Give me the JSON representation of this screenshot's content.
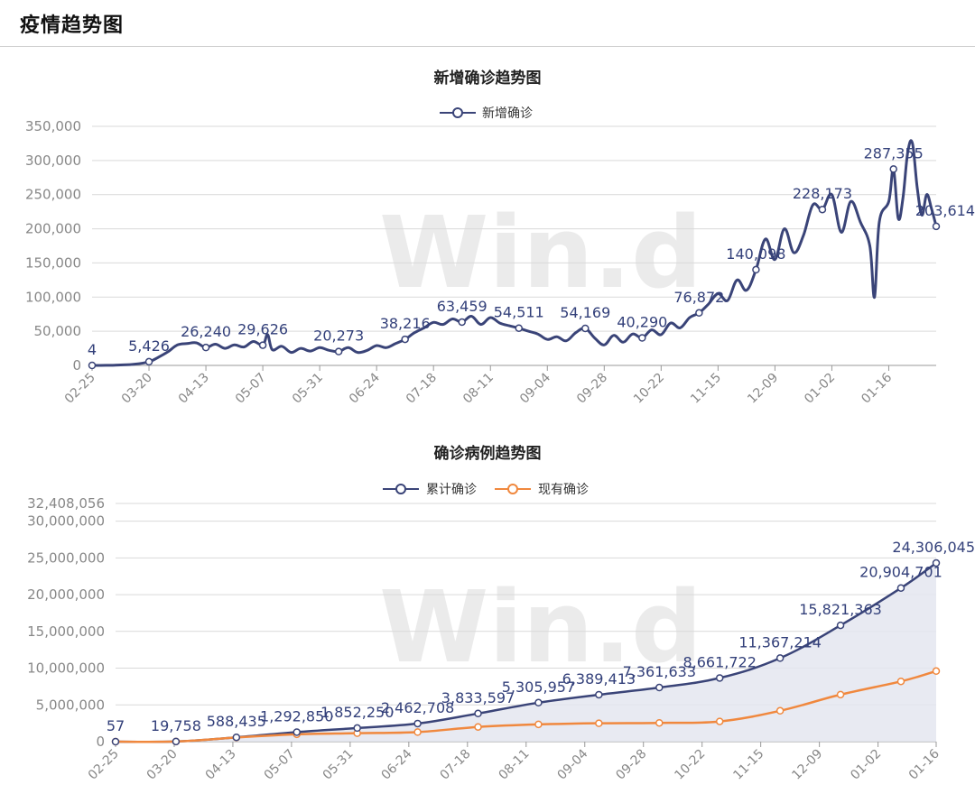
{
  "page": {
    "title": "疫情趋势图"
  },
  "watermark": "Win.d",
  "colors": {
    "navy": "#3a4478",
    "orange": "#f0883e",
    "area_fill": "#e4e6f0",
    "grid": "#d9d9d9",
    "axis_text": "#888888"
  },
  "chart_data": [
    {
      "type": "line",
      "title": "新增确诊趋势图",
      "legend_position": "top-center",
      "grid": true,
      "x_ticks": [
        "02-25",
        "03-20",
        "04-13",
        "05-07",
        "05-31",
        "06-24",
        "07-18",
        "08-11",
        "09-04",
        "09-28",
        "10-22",
        "11-15",
        "12-09",
        "01-02",
        "01-16"
      ],
      "y_ticks": [
        "0",
        "50,000",
        "100,000",
        "150,000",
        "200,000",
        "250,000",
        "300,000",
        "350,000"
      ],
      "ylim": [
        0,
        350000
      ],
      "series": [
        {
          "name": "新增确诊",
          "color": "#3a4478",
          "points": [
            {
              "x": 0,
              "y": 4
            },
            {
              "x": 6,
              "y": 150
            },
            {
              "x": 12,
              "y": 600
            },
            {
              "x": 18,
              "y": 1800
            },
            {
              "x": 24,
              "y": 5426
            },
            {
              "x": 28,
              "y": 12000
            },
            {
              "x": 32,
              "y": 20000
            },
            {
              "x": 36,
              "y": 30000
            },
            {
              "x": 40,
              "y": 32000
            },
            {
              "x": 44,
              "y": 33000
            },
            {
              "x": 48,
              "y": 26240
            },
            {
              "x": 52,
              "y": 31000
            },
            {
              "x": 56,
              "y": 25000
            },
            {
              "x": 60,
              "y": 30000
            },
            {
              "x": 64,
              "y": 27000
            },
            {
              "x": 68,
              "y": 35000
            },
            {
              "x": 72,
              "y": 29626
            },
            {
              "x": 74,
              "y": 45000
            },
            {
              "x": 76,
              "y": 23000
            },
            {
              "x": 80,
              "y": 28000
            },
            {
              "x": 84,
              "y": 19000
            },
            {
              "x": 88,
              "y": 25000
            },
            {
              "x": 92,
              "y": 21000
            },
            {
              "x": 96,
              "y": 26000
            },
            {
              "x": 100,
              "y": 22000
            },
            {
              "x": 104,
              "y": 20273
            },
            {
              "x": 108,
              "y": 26000
            },
            {
              "x": 112,
              "y": 19000
            },
            {
              "x": 116,
              "y": 22000
            },
            {
              "x": 120,
              "y": 29000
            },
            {
              "x": 124,
              "y": 26000
            },
            {
              "x": 128,
              "y": 32000
            },
            {
              "x": 132,
              "y": 38216
            },
            {
              "x": 136,
              "y": 48000
            },
            {
              "x": 140,
              "y": 55000
            },
            {
              "x": 144,
              "y": 63000
            },
            {
              "x": 148,
              "y": 60000
            },
            {
              "x": 152,
              "y": 68000
            },
            {
              "x": 156,
              "y": 63459
            },
            {
              "x": 160,
              "y": 72000
            },
            {
              "x": 164,
              "y": 60000
            },
            {
              "x": 168,
              "y": 70000
            },
            {
              "x": 172,
              "y": 62000
            },
            {
              "x": 176,
              "y": 58000
            },
            {
              "x": 180,
              "y": 54511
            },
            {
              "x": 184,
              "y": 50000
            },
            {
              "x": 188,
              "y": 46000
            },
            {
              "x": 192,
              "y": 38000
            },
            {
              "x": 196,
              "y": 42000
            },
            {
              "x": 200,
              "y": 36000
            },
            {
              "x": 204,
              "y": 48000
            },
            {
              "x": 208,
              "y": 54169
            },
            {
              "x": 212,
              "y": 40000
            },
            {
              "x": 216,
              "y": 30000
            },
            {
              "x": 220,
              "y": 44000
            },
            {
              "x": 224,
              "y": 34000
            },
            {
              "x": 228,
              "y": 46000
            },
            {
              "x": 232,
              "y": 40290
            },
            {
              "x": 236,
              "y": 52000
            },
            {
              "x": 240,
              "y": 45000
            },
            {
              "x": 244,
              "y": 62000
            },
            {
              "x": 248,
              "y": 55000
            },
            {
              "x": 252,
              "y": 70000
            },
            {
              "x": 256,
              "y": 76872
            },
            {
              "x": 260,
              "y": 90000
            },
            {
              "x": 264,
              "y": 105000
            },
            {
              "x": 268,
              "y": 95000
            },
            {
              "x": 272,
              "y": 125000
            },
            {
              "x": 276,
              "y": 110000
            },
            {
              "x": 280,
              "y": 140098
            },
            {
              "x": 284,
              "y": 185000
            },
            {
              "x": 288,
              "y": 155000
            },
            {
              "x": 292,
              "y": 200000
            },
            {
              "x": 296,
              "y": 165000
            },
            {
              "x": 300,
              "y": 190000
            },
            {
              "x": 304,
              "y": 235000
            },
            {
              "x": 308,
              "y": 228173
            },
            {
              "x": 312,
              "y": 250000
            },
            {
              "x": 316,
              "y": 195000
            },
            {
              "x": 320,
              "y": 240000
            },
            {
              "x": 324,
              "y": 210000
            },
            {
              "x": 328,
              "y": 175000
            },
            {
              "x": 330,
              "y": 100000
            },
            {
              "x": 332,
              "y": 210000
            },
            {
              "x": 336,
              "y": 240000
            },
            {
              "x": 338,
              "y": 287355
            },
            {
              "x": 340,
              "y": 215000
            },
            {
              "x": 342,
              "y": 245000
            },
            {
              "x": 344,
              "y": 312000
            },
            {
              "x": 346,
              "y": 325000
            },
            {
              "x": 348,
              "y": 260000
            },
            {
              "x": 350,
              "y": 220000
            },
            {
              "x": 352,
              "y": 250000
            },
            {
              "x": 354,
              "y": 230000
            },
            {
              "x": 356,
              "y": 203614
            }
          ],
          "labeled_points": [
            {
              "x": 0,
              "y": 4,
              "label": "4"
            },
            {
              "x": 24,
              "y": 5426,
              "label": "5,426"
            },
            {
              "x": 48,
              "y": 26240,
              "label": "26,240"
            },
            {
              "x": 72,
              "y": 29626,
              "label": "29,626"
            },
            {
              "x": 104,
              "y": 20273,
              "label": "20,273"
            },
            {
              "x": 132,
              "y": 38216,
              "label": "38,216"
            },
            {
              "x": 156,
              "y": 63459,
              "label": "63,459"
            },
            {
              "x": 180,
              "y": 54511,
              "label": "54,511"
            },
            {
              "x": 208,
              "y": 54169,
              "label": "54,169"
            },
            {
              "x": 232,
              "y": 40290,
              "label": "40,290"
            },
            {
              "x": 256,
              "y": 76872,
              "label": "76,872"
            },
            {
              "x": 280,
              "y": 140098,
              "label": "140,098"
            },
            {
              "x": 308,
              "y": 228173,
              "label": "228,173"
            },
            {
              "x": 338,
              "y": 287355,
              "label": "287,355"
            },
            {
              "x": 356,
              "y": 203614,
              "label": "203,614"
            }
          ]
        }
      ]
    },
    {
      "type": "line",
      "title": "确诊病例趋势图",
      "legend_position": "top-center",
      "grid": true,
      "x_ticks": [
        "02-25",
        "03-20",
        "04-13",
        "05-07",
        "05-31",
        "06-24",
        "07-18",
        "08-11",
        "09-04",
        "09-28",
        "10-22",
        "11-15",
        "12-09",
        "01-02",
        "01-16"
      ],
      "y_ticks": [
        "0",
        "5,000,000",
        "10,000,000",
        "15,000,000",
        "20,000,000",
        "25,000,000",
        "30,000,000",
        "32,408,056"
      ],
      "ylim": [
        0,
        32408056
      ],
      "series": [
        {
          "name": "累计确诊",
          "color": "#3a4478",
          "area": true,
          "points": [
            {
              "x": 0,
              "y": 57
            },
            {
              "x": 24,
              "y": 19758
            },
            {
              "x": 48,
              "y": 588435
            },
            {
              "x": 72,
              "y": 1292850
            },
            {
              "x": 96,
              "y": 1852250
            },
            {
              "x": 120,
              "y": 2462708
            },
            {
              "x": 144,
              "y": 3833597
            },
            {
              "x": 168,
              "y": 5305957
            },
            {
              "x": 192,
              "y": 6389413
            },
            {
              "x": 216,
              "y": 7361633
            },
            {
              "x": 240,
              "y": 8661722
            },
            {
              "x": 264,
              "y": 11367214
            },
            {
              "x": 288,
              "y": 15821363
            },
            {
              "x": 312,
              "y": 20904701
            },
            {
              "x": 326,
              "y": 24306045
            }
          ],
          "labels": [
            "57",
            "19,758",
            "588,435",
            "1,292,850",
            "1,852,250",
            "2,462,708",
            "3,833,597",
            "5,305,957",
            "6,389,413",
            "7,361,633",
            "8,661,722",
            "11,367,214",
            "15,821,363",
            "20,904,701",
            "24,306,045"
          ]
        },
        {
          "name": "现有确诊",
          "color": "#f0883e",
          "points": [
            {
              "x": 0,
              "y": 57
            },
            {
              "x": 24,
              "y": 19000
            },
            {
              "x": 48,
              "y": 560000
            },
            {
              "x": 72,
              "y": 1000000
            },
            {
              "x": 96,
              "y": 1150000
            },
            {
              "x": 120,
              "y": 1300000
            },
            {
              "x": 144,
              "y": 2000000
            },
            {
              "x": 168,
              "y": 2350000
            },
            {
              "x": 192,
              "y": 2500000
            },
            {
              "x": 216,
              "y": 2550000
            },
            {
              "x": 240,
              "y": 2750000
            },
            {
              "x": 264,
              "y": 4200000
            },
            {
              "x": 288,
              "y": 6400000
            },
            {
              "x": 312,
              "y": 8200000
            },
            {
              "x": 326,
              "y": 9600000
            }
          ]
        }
      ]
    }
  ]
}
